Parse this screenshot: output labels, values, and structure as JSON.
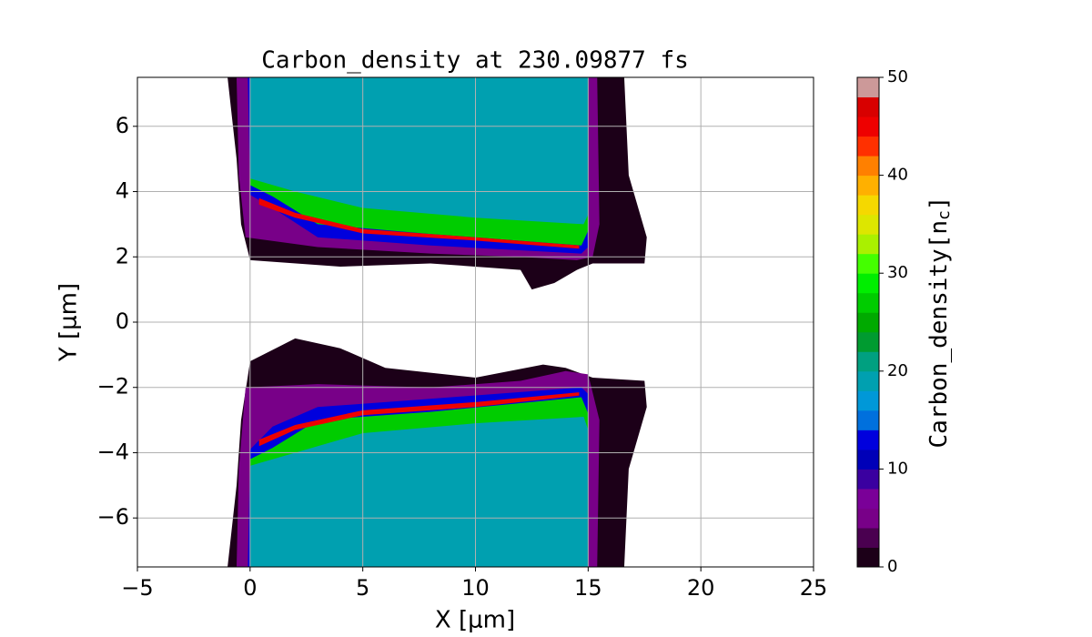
{
  "chart_data": {
    "type": "contourf",
    "title": "Carbon_density at 230.09877 fs",
    "x_label": "X [μm]",
    "y_label": "Y [μm]",
    "xlim": [
      -5,
      25
    ],
    "ylim": [
      -7.5,
      7.5
    ],
    "xticks": [
      {
        "value": -5,
        "label": "−5"
      },
      0,
      5,
      10,
      15,
      20,
      25
    ],
    "yticks": [
      {
        "value": -6,
        "label": "−6"
      },
      {
        "value": -4,
        "label": "−4"
      },
      {
        "value": -2,
        "label": "−2"
      },
      0,
      2,
      4,
      6
    ],
    "grid": true,
    "colorbar": {
      "label": "Carbon_density[n",
      "label_sub": "c",
      "label_end": "]",
      "lim": [
        0,
        50
      ],
      "ticks": [
        0,
        10,
        20,
        30,
        40,
        50
      ],
      "levels": [
        0,
        2,
        4,
        6,
        8,
        10,
        12,
        14,
        16,
        18,
        20,
        22,
        24,
        26,
        28,
        30,
        32,
        34,
        36,
        38,
        40,
        42,
        44,
        46,
        48,
        50
      ],
      "colors": [
        "#1c0018",
        "#4a0050",
        "#780088",
        "#7a0098",
        "#3a00a0",
        "#0000b8",
        "#0000dd",
        "#0070dd",
        "#0098d8",
        "#00a0b0",
        "#00a080",
        "#009b30",
        "#00aa00",
        "#00cc00",
        "#00ee00",
        "#44ff00",
        "#aaf000",
        "#dde600",
        "#f5d800",
        "#ffb000",
        "#ff8000",
        "#ff3000",
        "#ee0000",
        "#d80000",
        "#cc9999"
      ]
    },
    "regions": [
      {
        "value": 1,
        "points": [
          [
            -1.0,
            7.5
          ],
          [
            -0.6,
            5
          ],
          [
            -0.4,
            3
          ],
          [
            0,
            1.9
          ],
          [
            4,
            1.7
          ],
          [
            8,
            1.8
          ],
          [
            12,
            1.6
          ],
          [
            12.5,
            1.0
          ],
          [
            13.5,
            1.2
          ],
          [
            14.5,
            1.6
          ],
          [
            15.2,
            1.8
          ],
          [
            17.5,
            1.8
          ],
          [
            17.6,
            2.6
          ],
          [
            16.8,
            4.5
          ],
          [
            16.6,
            7.5
          ]
        ]
      },
      {
        "value": 5,
        "points": [
          [
            -0.6,
            7.5
          ],
          [
            -0.5,
            4.5
          ],
          [
            -0.2,
            2.6
          ],
          [
            3,
            2.3
          ],
          [
            8,
            2.1
          ],
          [
            12,
            2.0
          ],
          [
            14.5,
            1.9
          ],
          [
            15.2,
            2.0
          ],
          [
            15.5,
            3
          ],
          [
            15.4,
            7.5
          ]
        ]
      },
      {
        "value": 13,
        "points": [
          [
            -0.1,
            7.5
          ],
          [
            0,
            3.9
          ],
          [
            1,
            3.5
          ],
          [
            3,
            2.6
          ],
          [
            8,
            2.35
          ],
          [
            14.7,
            2.1
          ],
          [
            15,
            2.3
          ],
          [
            15,
            7.5
          ]
        ]
      },
      {
        "value": 27,
        "points": [
          [
            0,
            7.5
          ],
          [
            0,
            4.2
          ],
          [
            1,
            3.85
          ],
          [
            3,
            3.0
          ],
          [
            8,
            2.7
          ],
          [
            14.7,
            2.35
          ],
          [
            15,
            2.8
          ],
          [
            15,
            7.5
          ]
        ]
      },
      {
        "value": 19,
        "points": [
          [
            0,
            7.5
          ],
          [
            0,
            4.4
          ],
          [
            2,
            4.0
          ],
          [
            5,
            3.5
          ],
          [
            10,
            3.2
          ],
          [
            14.8,
            3.0
          ],
          [
            15,
            3.3
          ],
          [
            15,
            7.5
          ]
        ]
      },
      {
        "value": 44,
        "points": [
          [
            0.4,
            3.8
          ],
          [
            2,
            3.35
          ],
          [
            5,
            2.85
          ],
          [
            10,
            2.6
          ],
          [
            14.6,
            2.35
          ],
          [
            14.6,
            2.25
          ],
          [
            10,
            2.5
          ],
          [
            5,
            2.72
          ],
          [
            2,
            3.2
          ],
          [
            0.4,
            3.6
          ]
        ]
      },
      {
        "value": 1,
        "points": [
          [
            -1.0,
            -7.5
          ],
          [
            -0.6,
            -5
          ],
          [
            -0.4,
            -3
          ],
          [
            0,
            -1.2
          ],
          [
            2,
            -0.5
          ],
          [
            4,
            -0.8
          ],
          [
            6,
            -1.4
          ],
          [
            10,
            -1.7
          ],
          [
            13,
            -1.3
          ],
          [
            14,
            -1.4
          ],
          [
            15.2,
            -1.7
          ],
          [
            17.5,
            -1.8
          ],
          [
            17.6,
            -2.6
          ],
          [
            16.8,
            -4.5
          ],
          [
            16.6,
            -7.5
          ]
        ]
      },
      {
        "value": 5,
        "points": [
          [
            -0.6,
            -7.5
          ],
          [
            -0.5,
            -4.5
          ],
          [
            -0.2,
            -2.0
          ],
          [
            3,
            -1.9
          ],
          [
            8,
            -2.0
          ],
          [
            12,
            -1.8
          ],
          [
            14,
            -1.5
          ],
          [
            15,
            -1.6
          ],
          [
            15.5,
            -3
          ],
          [
            15.4,
            -7.5
          ]
        ]
      },
      {
        "value": 13,
        "points": [
          [
            -0.1,
            -7.5
          ],
          [
            0,
            -3.9
          ],
          [
            1,
            -3.2
          ],
          [
            3,
            -2.6
          ],
          [
            8,
            -2.35
          ],
          [
            14.7,
            -2.0
          ],
          [
            15,
            -2.2
          ],
          [
            15,
            -7.5
          ]
        ]
      },
      {
        "value": 27,
        "points": [
          [
            0,
            -7.5
          ],
          [
            0,
            -4.2
          ],
          [
            1,
            -3.85
          ],
          [
            3,
            -3.0
          ],
          [
            8,
            -2.75
          ],
          [
            14.7,
            -2.3
          ],
          [
            15,
            -2.8
          ],
          [
            15,
            -7.5
          ]
        ]
      },
      {
        "value": 19,
        "points": [
          [
            0,
            -7.5
          ],
          [
            0,
            -4.4
          ],
          [
            2,
            -4.0
          ],
          [
            5,
            -3.4
          ],
          [
            10,
            -3.1
          ],
          [
            14.8,
            -2.9
          ],
          [
            15,
            -3.3
          ],
          [
            15,
            -7.5
          ]
        ]
      },
      {
        "value": 44,
        "points": [
          [
            0.4,
            -3.8
          ],
          [
            2,
            -3.3
          ],
          [
            5,
            -2.85
          ],
          [
            10,
            -2.6
          ],
          [
            14.6,
            -2.25
          ],
          [
            14.6,
            -2.15
          ],
          [
            10,
            -2.45
          ],
          [
            5,
            -2.7
          ],
          [
            2,
            -3.15
          ],
          [
            0.4,
            -3.6
          ]
        ]
      }
    ]
  }
}
